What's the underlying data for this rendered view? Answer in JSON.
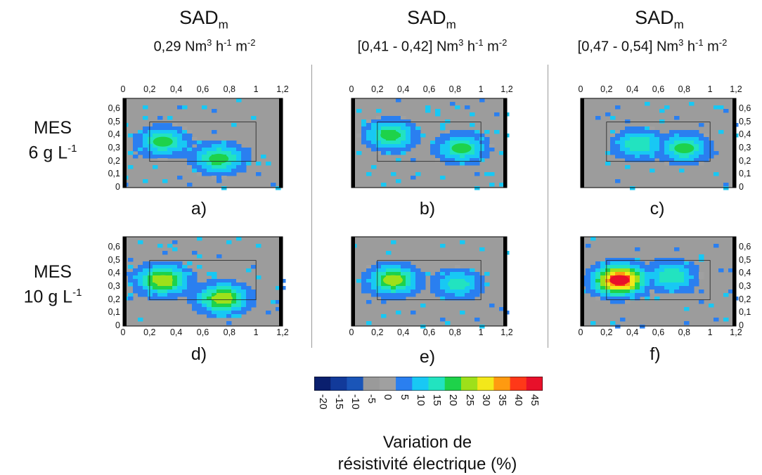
{
  "headers": [
    {
      "title": "SAD",
      "sub": "m",
      "dose": "0,29 Nm",
      "u3": "3",
      "h": " h",
      "hexp": "-1",
      "m": " m",
      "mexp": "-2"
    },
    {
      "title": "SAD",
      "sub": "m",
      "dose": "[0,41 - 0,42] Nm",
      "u3": "3",
      "h": " h",
      "hexp": "-1",
      "m": " m",
      "mexp": "-2"
    },
    {
      "title": "SAD",
      "sub": "m",
      "dose": "[0,47 - 0,54] Nm",
      "u3": "3",
      "h": " h",
      "hexp": "-1",
      "m": " m",
      "mexp": "-2"
    }
  ],
  "rows": [
    {
      "line1": "MES",
      "line2": "6 g L",
      "exp": "-1"
    },
    {
      "line1": "MES",
      "line2": "10 g L",
      "exp": "-1"
    }
  ],
  "panel_labels": [
    "a)",
    "b)",
    "c)",
    "d)",
    "e)",
    "f)"
  ],
  "x_ticks": [
    "0",
    "0,2",
    "0,4",
    "0,6",
    "0,8",
    "1",
    "1,2"
  ],
  "y_ticks": [
    "0",
    "0,1",
    "0,2",
    "0,3",
    "0,4",
    "0,5",
    "0,6"
  ],
  "colorbar": {
    "ticks": [
      "-20",
      "-15",
      "-10",
      "-5",
      "0",
      "5",
      "10",
      "15",
      "20",
      "25",
      "30",
      "35",
      "40",
      "45"
    ],
    "colors": [
      "#0a1f6e",
      "#123a9a",
      "#1a55b8",
      "#9a9a9a",
      "#a0a0a0",
      "#2a7ff0",
      "#18c8f4",
      "#22e3c0",
      "#1ed24a",
      "#9ee01a",
      "#f3e81a",
      "#ff9a10",
      "#ff3818",
      "#e8102a"
    ],
    "title_line1": "Variation de",
    "title_line2": "résistivité électrique (%)"
  },
  "chart_data": {
    "type": "heatmap",
    "x_range": [
      0,
      1.2
    ],
    "y_range": [
      0,
      0.68
    ],
    "value_range": [
      -20,
      45
    ],
    "panels": [
      {
        "label": "a)",
        "hotspots": [
          {
            "x": 0.3,
            "y": 0.35,
            "value": 18
          },
          {
            "x": 0.72,
            "y": 0.22,
            "value": 20
          }
        ]
      },
      {
        "label": "b)",
        "hotspots": [
          {
            "x": 0.3,
            "y": 0.4,
            "value": 20
          },
          {
            "x": 0.85,
            "y": 0.3,
            "value": 18
          }
        ]
      },
      {
        "label": "c)",
        "hotspots": [
          {
            "x": 0.45,
            "y": 0.33,
            "value": 17
          },
          {
            "x": 0.8,
            "y": 0.3,
            "value": 18
          }
        ]
      },
      {
        "label": "d)",
        "hotspots": [
          {
            "x": 0.3,
            "y": 0.35,
            "value": 26
          },
          {
            "x": 0.75,
            "y": 0.21,
            "value": 25
          }
        ]
      },
      {
        "label": "e)",
        "hotspots": [
          {
            "x": 0.32,
            "y": 0.35,
            "value": 24
          },
          {
            "x": 0.82,
            "y": 0.32,
            "value": 15
          }
        ]
      },
      {
        "label": "f)",
        "hotspots": [
          {
            "x": 0.3,
            "y": 0.35,
            "value": 42
          },
          {
            "x": 0.7,
            "y": 0.38,
            "value": 17
          }
        ]
      }
    ]
  }
}
